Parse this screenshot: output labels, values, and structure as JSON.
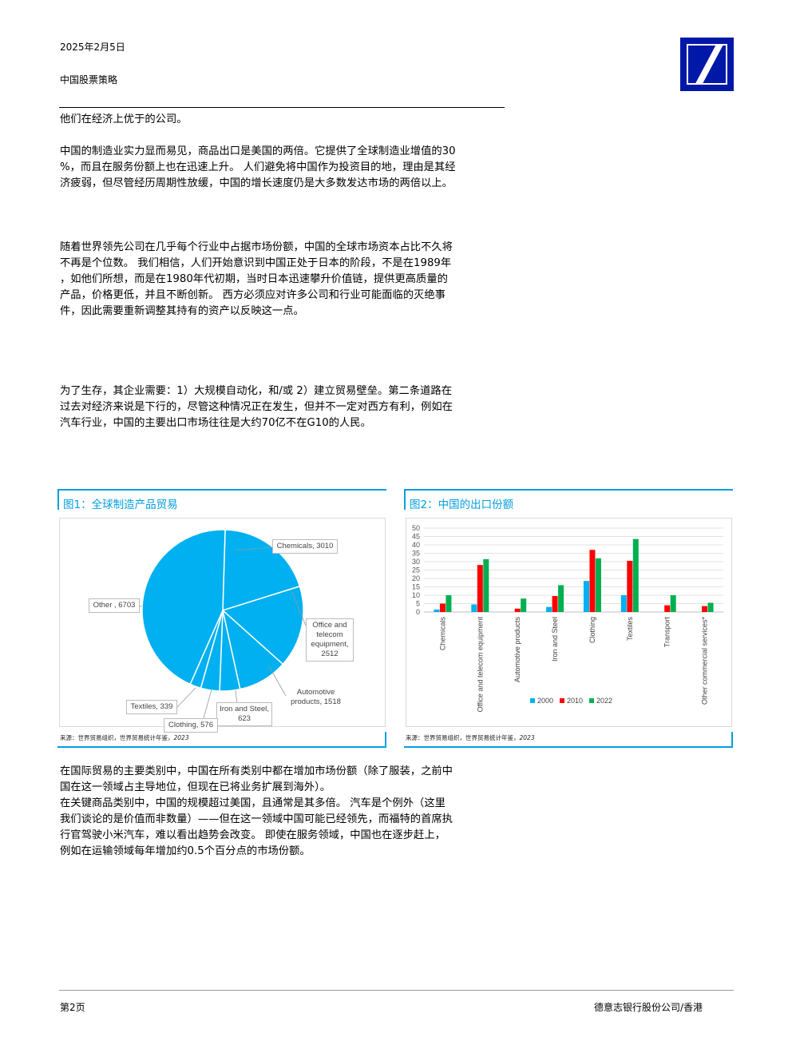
{
  "header": {
    "date": "2025年2月5日",
    "section": "中国股票策略"
  },
  "body": {
    "p1": "他们在经济上优于的公司。",
    "p2": [
      "中国的制造业实力显而易见，商品出口是美国的两倍。它提供了全球制造业增值的30",
      "%，而且在服务份额上也在迅速上升。 人们避免将中国作为投资目的地，理由是其经",
      "济疲弱，但尽管经历周期性放缓，中国的增长速度仍是大多数发达市场的两倍以上。"
    ],
    "p3": [
      "随着世界领先公司在几乎每个行业中占据市场份额，中国的全球市场资本占比不久将",
      "不再是个位数。 我们相信，人们开始意识到中国正处于日本的阶段，不是在1989年",
      "，如他们所想，而是在1980年代初期，当时日本迅速攀升价值链，提供更高质量的",
      "产品，价格更低，并且不断创新。 西方必须应对许多公司和行业可能面临的灭绝事",
      "件，因此需要重新调整其持有的资产以反映这一点。"
    ],
    "p4": [
      "为了生存，其企业需要：1）大规模自动化，和/或 2）建立贸易壁垒。第二条道路在",
      "过去对经济来说是下行的，尽管这种情况正在发生，但并不一定对西方有利，例如在",
      "汽车行业，中国的主要出口市场往往是大约70亿不在G10的人民。"
    ],
    "p5": [
      "在国际贸易的主要类别中，中国在所有类别中都在增加市场份额（除了服装，之前中",
      "国在这一领域占主导地位，但现在已将业务扩展到海外）。",
      "在关键商品类别中，中国的规模超过美国，且通常是其多倍。 汽车是个例外（这里",
      "我们谈论的是价值而非数量）——但在这一领域中国可能已经领先，而福特的首席执",
      "行官驾驶小米汽车，难以看出趋势会改变。 即使在服务领域，中国也在逐步赶上，",
      "例如在运输领域每年增加约0.5个百分点的市场份额。"
    ]
  },
  "figure1": {
    "title": "图1：全球制造产品贸易",
    "source_prefix": "来源：世界贸易组织，世界贸易统计年鉴，",
    "source_year": "2023"
  },
  "figure2": {
    "title": "图2：中国的出口份额",
    "source_prefix": "来源：世界贸易组织，世界贸易统计年鉴，",
    "source_year": "2023"
  },
  "chart_data": [
    {
      "type": "pie",
      "slice_color": "#00b0f0",
      "slices": [
        {
          "label": "Chemicals, 3010",
          "value": 3010
        },
        {
          "label": "Office and telecom equipment, 2512",
          "value": 2512
        },
        {
          "label": "Automotive products, 1518",
          "value": 1518
        },
        {
          "label": "Iron and Steel, 623",
          "value": 623
        },
        {
          "label": "Clothing, 576",
          "value": 576
        },
        {
          "label": "Textiles, 339",
          "value": 339
        },
        {
          "label": "Other , 6703",
          "value": 6703
        }
      ]
    },
    {
      "type": "bar",
      "categories": [
        "Chemicals",
        "Office and telecom equipment",
        "Automotive products",
        "Iron and Steel",
        "Clothing",
        "Textiles",
        "Transport",
        "Other commercial services*"
      ],
      "series": [
        {
          "name": "2000",
          "color": "#00b0f0",
          "values": [
            1.5,
            4.5,
            0,
            3,
            18.5,
            10,
            0,
            0
          ]
        },
        {
          "name": "2010",
          "color": "#ff0000",
          "values": [
            5,
            28,
            2,
            9.5,
            37,
            30.5,
            4,
            3.5
          ]
        },
        {
          "name": "2022",
          "color": "#00b050",
          "values": [
            10,
            31.5,
            8,
            16,
            32,
            43.5,
            10,
            5.5
          ]
        }
      ],
      "y_ticks": [
        "0",
        "5",
        "10",
        "15",
        "20",
        "25",
        "30",
        "35",
        "40",
        "45",
        "50"
      ],
      "ylim": [
        0,
        50
      ],
      "grid": true,
      "legend": "bottom"
    }
  ],
  "footer": {
    "page": "第2页",
    "company": "德意志银行股份公司/香港"
  }
}
